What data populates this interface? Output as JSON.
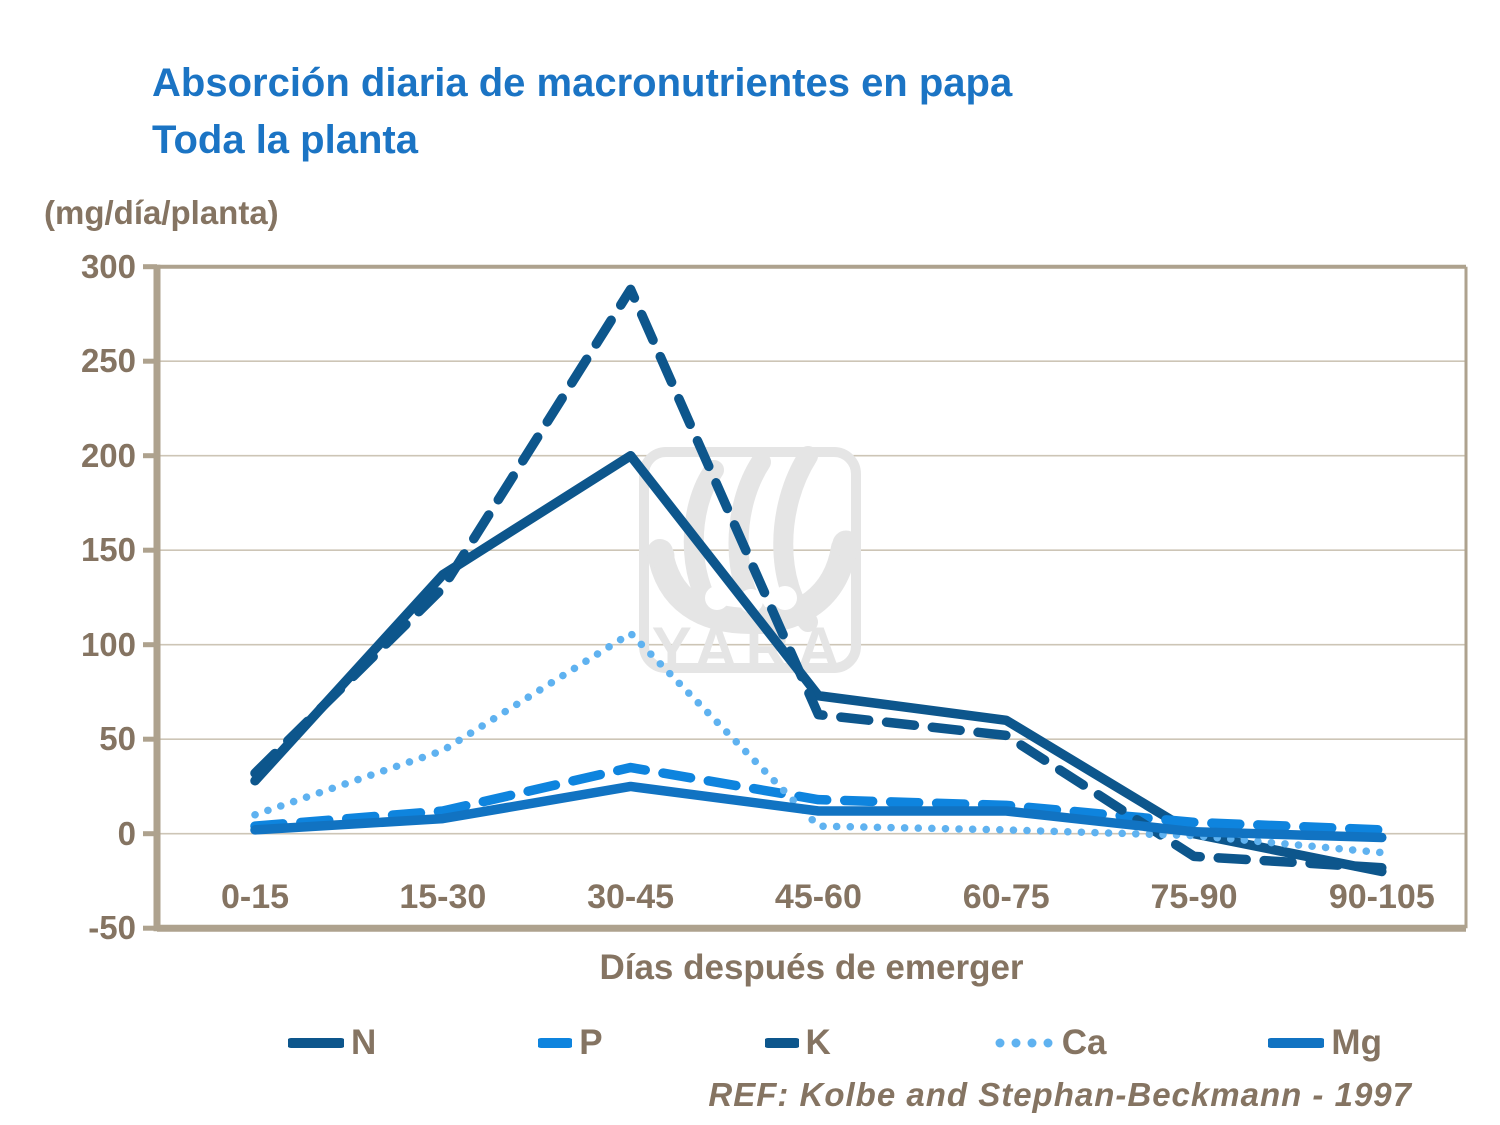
{
  "title": {
    "line1": "Absorción diaria de macronutrientes en papa",
    "line2": "Toda la planta"
  },
  "y_axis_unit": "(mg/día/planta)",
  "x_axis_title": "Días después de emerger",
  "reference": "REF: Kolbe and Stephan-Beckmann - 1997",
  "watermark": "YARA",
  "colors": {
    "title_blue": "#1B74C4",
    "axis_taupe": "#AEA28E",
    "grid_taupe": "#CDC5B6",
    "label_taupe": "#857462",
    "dark_navy": "#0D568C",
    "bright_blue": "#0E84DE",
    "medium_blue": "#1173C2",
    "light_blue": "#5FB2F0",
    "watermark_gray": "#E5E5E5"
  },
  "chart_data": {
    "type": "line",
    "title": "Absorción diaria de macronutrientes en papa — Toda la planta",
    "xlabel": "Días después de emerger",
    "ylabel": "(mg/día/planta)",
    "categories": [
      "0-15",
      "15-30",
      "30-45",
      "45-60",
      "60-75",
      "75-90",
      "90-105"
    ],
    "series": [
      {
        "name": "N",
        "style": "solid",
        "color": "#0D568C",
        "values": [
          28,
          137,
          200,
          73,
          60,
          0,
          -20
        ]
      },
      {
        "name": "P",
        "style": "dash",
        "color": "#0E84DE",
        "values": [
          4,
          12,
          35,
          18,
          15,
          6,
          2
        ]
      },
      {
        "name": "K",
        "style": "dash",
        "color": "#0D568C",
        "values": [
          32,
          130,
          288,
          63,
          52,
          -12,
          -18
        ]
      },
      {
        "name": "Ca",
        "style": "dot",
        "color": "#5FB2F0",
        "values": [
          10,
          44,
          106,
          4,
          2,
          -1,
          -10
        ]
      },
      {
        "name": "Mg",
        "style": "solid",
        "color": "#1173C2",
        "values": [
          2,
          8,
          25,
          12,
          12,
          1,
          -2
        ]
      }
    ],
    "ylim": [
      -50,
      300
    ],
    "yticks": [
      300,
      250,
      200,
      150,
      100,
      50,
      0,
      -50
    ],
    "grid": true,
    "legend_position": "bottom"
  }
}
